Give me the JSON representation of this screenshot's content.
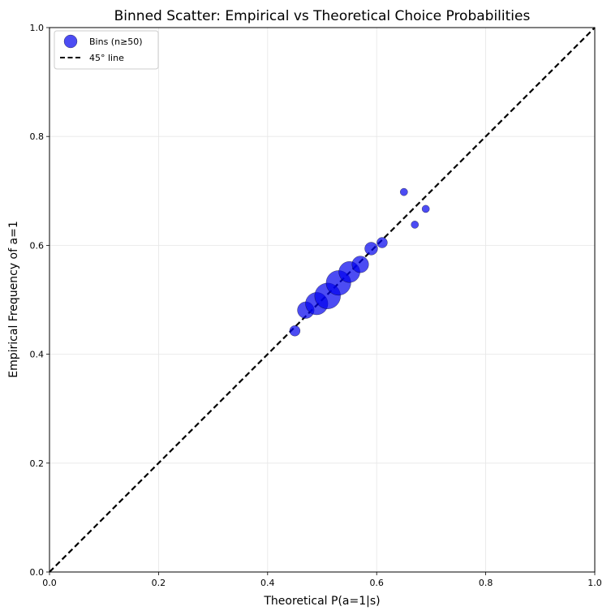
{
  "chart_data": {
    "type": "scatter",
    "title": "Binned Scatter: Empirical vs Theoretical Choice Probabilities",
    "xlabel": "Theoretical P(a=1|s)",
    "ylabel": "Empirical Frequency of a=1",
    "xlim": [
      0,
      1
    ],
    "ylim": [
      0,
      1
    ],
    "xticks": [
      "0.0",
      "0.2",
      "0.4",
      "0.6",
      "0.8",
      "1.0"
    ],
    "yticks": [
      "0.0",
      "0.2",
      "0.4",
      "0.6",
      "0.8",
      "1.0"
    ],
    "grid": true,
    "legend_position": "upper-left",
    "colors": {
      "points": "#0000ee",
      "points_alpha": 0.7,
      "reference_line": "#000000",
      "grid": "#e6e6e6"
    },
    "series": [
      {
        "name": "Bins (n≥50)",
        "kind": "scatter",
        "points": [
          {
            "x": 0.45,
            "y": 0.443,
            "size": 2
          },
          {
            "x": 0.47,
            "y": 0.481,
            "size": 5
          },
          {
            "x": 0.49,
            "y": 0.493,
            "size": 9
          },
          {
            "x": 0.51,
            "y": 0.507,
            "size": 12
          },
          {
            "x": 0.53,
            "y": 0.531,
            "size": 11
          },
          {
            "x": 0.55,
            "y": 0.551,
            "size": 8
          },
          {
            "x": 0.57,
            "y": 0.565,
            "size": 5
          },
          {
            "x": 0.59,
            "y": 0.594,
            "size": 3
          },
          {
            "x": 0.61,
            "y": 0.605,
            "size": 2
          },
          {
            "x": 0.65,
            "y": 0.698,
            "size": 1
          },
          {
            "x": 0.67,
            "y": 0.638,
            "size": 1
          },
          {
            "x": 0.69,
            "y": 0.667,
            "size": 1
          }
        ]
      },
      {
        "name": "45° line",
        "kind": "line",
        "style": "dashed",
        "x": [
          0,
          1
        ],
        "y": [
          0,
          1
        ]
      }
    ]
  }
}
